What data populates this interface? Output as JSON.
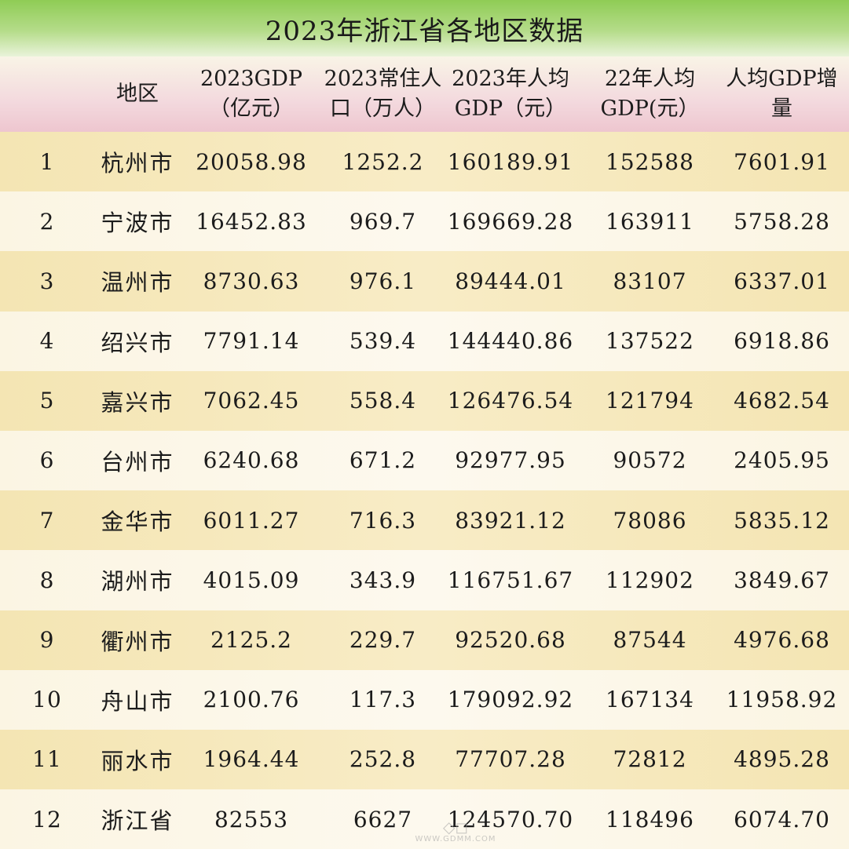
{
  "title": "2023年浙江省各地区数据",
  "headers": [
    "",
    "地区",
    "2023GDP\n（亿元）",
    "2023常住人\n口（万人）",
    "2023年人均\nGDP（元）",
    "22年人均\nGDP(元）",
    "人均GDP增\n量"
  ],
  "rows": [
    {
      "idx": "1",
      "region": "杭州市",
      "gdp": "20058.98",
      "pop": "1252.2",
      "pc2023": "160189.91",
      "pc2022": "152588",
      "inc": "7601.91"
    },
    {
      "idx": "2",
      "region": "宁波市",
      "gdp": "16452.83",
      "pop": "969.7",
      "pc2023": "169669.28",
      "pc2022": "163911",
      "inc": "5758.28"
    },
    {
      "idx": "3",
      "region": "温州市",
      "gdp": "8730.63",
      "pop": "976.1",
      "pc2023": "89444.01",
      "pc2022": "83107",
      "inc": "6337.01"
    },
    {
      "idx": "4",
      "region": "绍兴市",
      "gdp": "7791.14",
      "pop": "539.4",
      "pc2023": "144440.86",
      "pc2022": "137522",
      "inc": "6918.86"
    },
    {
      "idx": "5",
      "region": "嘉兴市",
      "gdp": "7062.45",
      "pop": "558.4",
      "pc2023": "126476.54",
      "pc2022": "121794",
      "inc": "4682.54"
    },
    {
      "idx": "6",
      "region": "台州市",
      "gdp": "6240.68",
      "pop": "671.2",
      "pc2023": "92977.95",
      "pc2022": "90572",
      "inc": "2405.95"
    },
    {
      "idx": "7",
      "region": "金华市",
      "gdp": "6011.27",
      "pop": "716.3",
      "pc2023": "83921.12",
      "pc2022": "78086",
      "inc": "5835.12"
    },
    {
      "idx": "8",
      "region": "湖州市",
      "gdp": "4015.09",
      "pop": "343.9",
      "pc2023": "116751.67",
      "pc2022": "112902",
      "inc": "3849.67"
    },
    {
      "idx": "9",
      "region": "衢州市",
      "gdp": "2125.2",
      "pop": "229.7",
      "pc2023": "92520.68",
      "pc2022": "87544",
      "inc": "4976.68"
    },
    {
      "idx": "10",
      "region": "舟山市",
      "gdp": "2100.76",
      "pop": "117.3",
      "pc2023": "179092.92",
      "pc2022": "167134",
      "inc": "11958.92"
    },
    {
      "idx": "11",
      "region": "丽水市",
      "gdp": "1964.44",
      "pop": "252.8",
      "pc2023": "77707.28",
      "pc2022": "72812",
      "inc": "4895.28"
    },
    {
      "idx": "12",
      "region": "浙江省",
      "gdp": "82553",
      "pop": "6627",
      "pc2023": "124570.70",
      "pc2022": "118496",
      "inc": "6074.70"
    }
  ],
  "watermark": {
    "icon": "logo-glyph",
    "url": "WWW.GDMM.COM"
  }
}
